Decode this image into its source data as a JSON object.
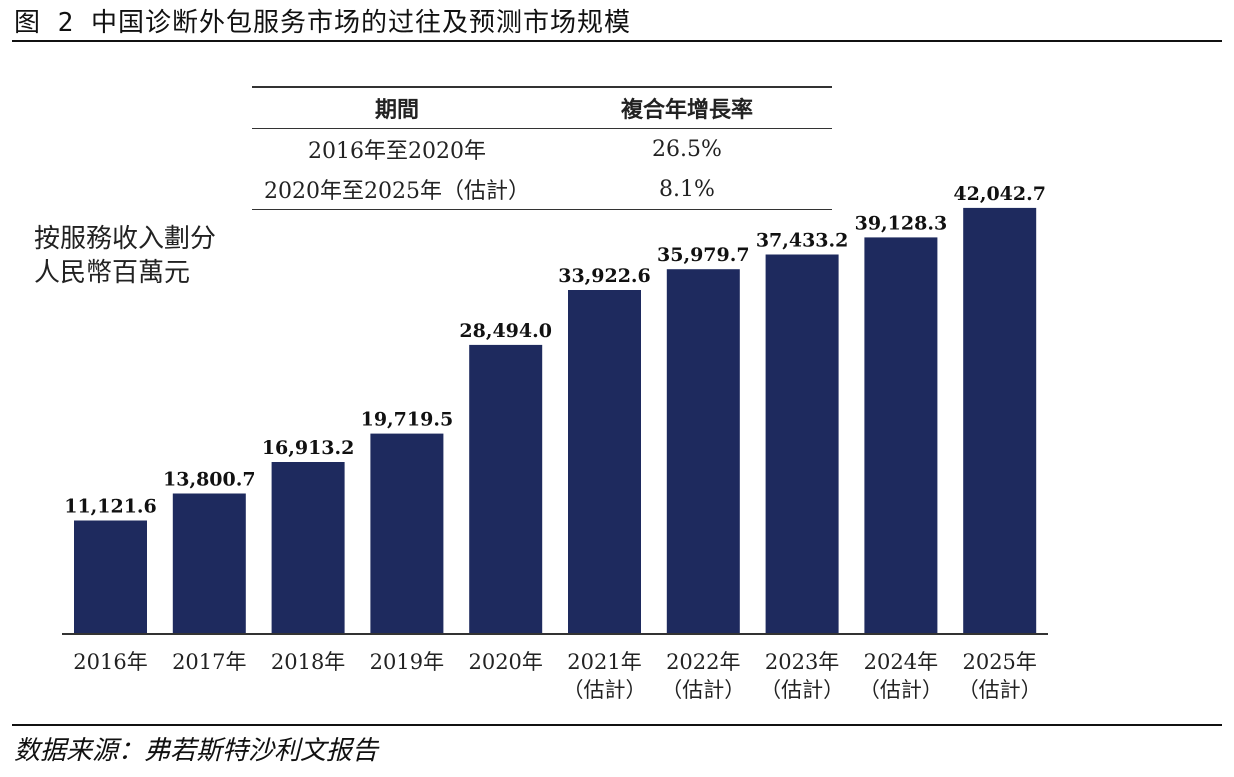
{
  "figure_title": "图 2 中国诊断外包服务市场的过往及预测市场规模",
  "source": "数据来源：弗若斯特沙利文报告",
  "cagr_table": {
    "headers": [
      "期間",
      "複合年增長率"
    ],
    "rows": [
      [
        "2016年至2020年",
        "26.5%"
      ],
      [
        "2020年至2025年（估計）",
        "8.1%"
      ]
    ]
  },
  "unit_label": [
    "按服務收入劃分",
    "人民幣百萬元"
  ],
  "colors": {
    "bar": "#1e2a5e"
  },
  "chart_data": {
    "type": "bar",
    "title": "",
    "xlabel": "",
    "ylabel": "按服務收入劃分 人民幣百萬元",
    "ylim": [
      0,
      45000
    ],
    "categories": [
      [
        "2016年"
      ],
      [
        "2017年"
      ],
      [
        "2018年"
      ],
      [
        "2019年"
      ],
      [
        "2020年"
      ],
      [
        "2021年",
        "（估計）"
      ],
      [
        "2022年",
        "（估計）"
      ],
      [
        "2023年",
        "（估計）"
      ],
      [
        "2024年",
        "（估計）"
      ],
      [
        "2025年",
        "（估計）"
      ]
    ],
    "values": [
      11121.6,
      13800.7,
      16913.2,
      19719.5,
      28494.0,
      33922.6,
      35979.7,
      37433.2,
      39128.3,
      42042.7
    ],
    "value_labels": [
      "11,121.6",
      "13,800.7",
      "16,913.2",
      "19,719.5",
      "28,494.0",
      "33,922.6",
      "35,979.7",
      "37,433.2",
      "39,128.3",
      "42,042.7"
    ],
    "grid": false,
    "legend": "none"
  }
}
